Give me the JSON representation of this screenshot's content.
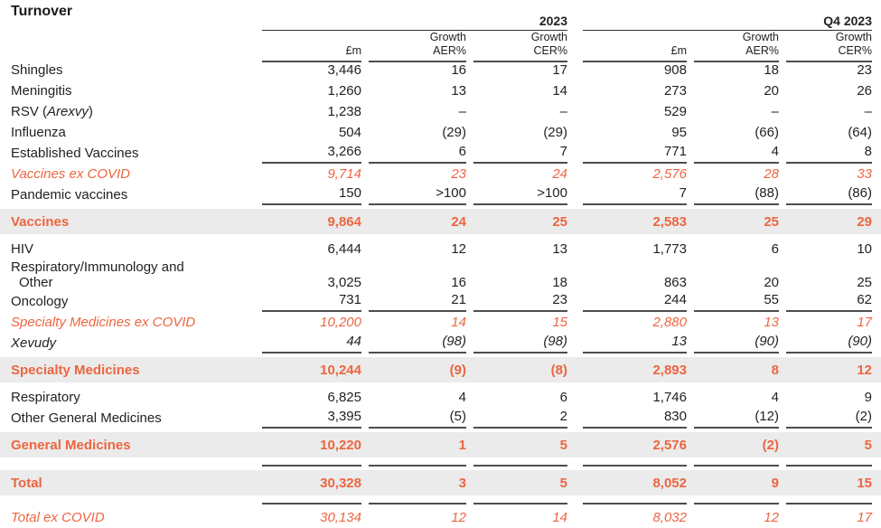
{
  "title": "Turnover",
  "colors": {
    "accent": "#ED6540",
    "rule": "#4D4D4D",
    "band": "#EBEBEB",
    "text": "#222222"
  },
  "groups": [
    {
      "label": "2023"
    },
    {
      "label": "Q4 2023"
    }
  ],
  "columns": [
    {
      "top": "",
      "bottom": "£m"
    },
    {
      "top": "Growth",
      "bottom": "AER%"
    },
    {
      "top": "Growth",
      "bottom": "CER%"
    },
    {
      "top": "",
      "bottom": "£m"
    },
    {
      "top": "Growth",
      "bottom": "AER%"
    },
    {
      "top": "Growth",
      "bottom": "CER%"
    }
  ],
  "rows": [
    {
      "id": "shingles",
      "label": "Shingles",
      "cells": [
        "3,446",
        "16",
        "17",
        "908",
        "18",
        "23"
      ]
    },
    {
      "id": "meningitis",
      "label": "Meningitis",
      "cells": [
        "1,260",
        "13",
        "14",
        "273",
        "20",
        "26"
      ]
    },
    {
      "id": "rsv-arexvy",
      "label_parts": [
        {
          "text": "RSV ("
        },
        {
          "text": "Arexvy",
          "italic": true
        },
        {
          "text": ")"
        }
      ],
      "cells": [
        "1,238",
        "–",
        "–",
        "529",
        "–",
        "–"
      ]
    },
    {
      "id": "influenza",
      "label": "Influenza",
      "cells": [
        "504",
        "(29)",
        "(29)",
        "95",
        "(66)",
        "(64)"
      ]
    },
    {
      "id": "established-vaccines",
      "label": "Established Vaccines",
      "cells": [
        "3,266",
        "6",
        "7",
        "771",
        "4",
        "8"
      ],
      "rule_below": true
    },
    {
      "id": "vaccines-ex-covid",
      "label": "Vaccines ex COVID",
      "style": "accent-italic",
      "cells": [
        "9,714",
        "23",
        "24",
        "2,576",
        "28",
        "33"
      ]
    },
    {
      "id": "pandemic-vaccines",
      "label": "Pandemic vaccines",
      "cells": [
        "150",
        ">100",
        ">100",
        "7",
        "(88)",
        "(86)"
      ],
      "rule_below": true
    },
    {
      "id": "vaccines",
      "label": "Vaccines",
      "style": "subtotal",
      "cells": [
        "9,864",
        "24",
        "25",
        "2,583",
        "25",
        "29"
      ]
    },
    {
      "id": "hiv",
      "label": "HIV",
      "cells": [
        "6,444",
        "12",
        "13",
        "1,773",
        "6",
        "10"
      ]
    },
    {
      "id": "respiratory-immunology-other",
      "label_lines": [
        "Respiratory/Immunology and",
        "Other"
      ],
      "cells": [
        "3,025",
        "16",
        "18",
        "863",
        "20",
        "25"
      ]
    },
    {
      "id": "oncology",
      "label": "Oncology",
      "cells": [
        "731",
        "21",
        "23",
        "244",
        "55",
        "62"
      ],
      "rule_below": true
    },
    {
      "id": "specialty-medicines-ex-covid",
      "label": "Specialty Medicines ex COVID",
      "style": "accent-italic",
      "cells": [
        "10,200",
        "14",
        "15",
        "2,880",
        "13",
        "17"
      ]
    },
    {
      "id": "xevudy",
      "label": "Xevudy",
      "style": "black-italic",
      "cells": [
        "44",
        "(98)",
        "(98)",
        "13",
        "(90)",
        "(90)"
      ],
      "rule_below": true
    },
    {
      "id": "specialty-medicines",
      "label": "Specialty Medicines",
      "style": "subtotal",
      "cells": [
        "10,244",
        "(9)",
        "(8)",
        "2,893",
        "8",
        "12"
      ]
    },
    {
      "id": "respiratory",
      "label": "Respiratory",
      "cells": [
        "6,825",
        "4",
        "6",
        "1,746",
        "4",
        "9"
      ]
    },
    {
      "id": "other-general-medicines",
      "label": "Other General Medicines",
      "cells": [
        "3,395",
        "(5)",
        "2",
        "830",
        "(12)",
        "(2)"
      ],
      "rule_below": true
    },
    {
      "id": "general-medicines",
      "label": "General Medicines",
      "style": "subtotal",
      "cells": [
        "10,220",
        "1",
        "5",
        "2,576",
        "(2)",
        "5"
      ]
    },
    {
      "id": "rule-after-general-medicines",
      "type": "rule-spacer"
    },
    {
      "id": "total",
      "label": "Total",
      "style": "subtotal",
      "cells": [
        "30,328",
        "3",
        "5",
        "8,052",
        "9",
        "15"
      ]
    },
    {
      "id": "rule-after-total",
      "type": "rule-spacer"
    },
    {
      "id": "total-ex-covid",
      "label": "Total ex COVID",
      "style": "accent-italic",
      "cells": [
        "30,134",
        "12",
        "14",
        "8,032",
        "12",
        "17"
      ]
    }
  ]
}
